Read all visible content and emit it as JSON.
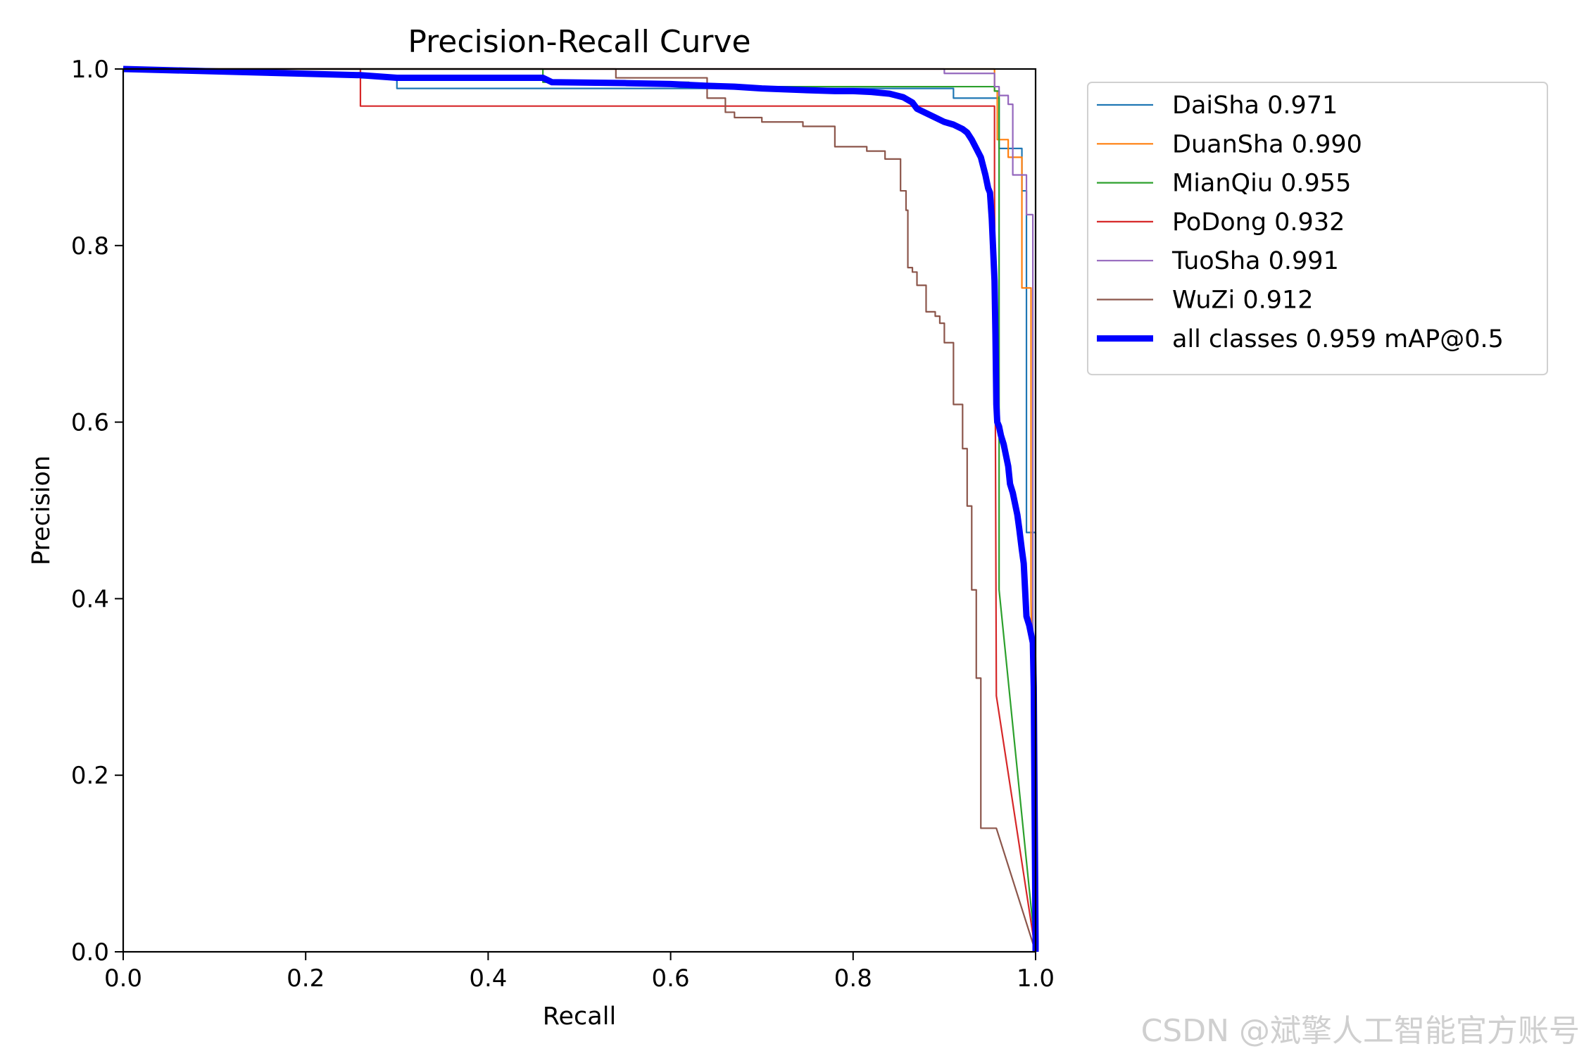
{
  "watermark": "CSDN @斌擎人工智能官方账号",
  "chart_data": {
    "type": "line",
    "title": "Precision-Recall Curve",
    "xlabel": "Recall",
    "ylabel": "Precision",
    "xlim": [
      0.0,
      1.0
    ],
    "ylim": [
      0.0,
      1.0
    ],
    "xticks": [
      "0.0",
      "0.2",
      "0.4",
      "0.6",
      "0.8",
      "1.0"
    ],
    "yticks": [
      "0.0",
      "0.2",
      "0.4",
      "0.6",
      "0.8",
      "1.0"
    ],
    "grid": false,
    "legend_position": "outside-right-top",
    "series": [
      {
        "name": "DaiSha 0.971",
        "color": "#1f77b4",
        "width": "thin",
        "x": [
          0,
          0.26,
          0.26,
          0.3,
          0.3,
          0.91,
          0.91,
          0.96,
          0.96,
          0.985,
          0.985,
          0.99,
          0.99,
          1.0,
          1.0
        ],
        "y": [
          1.0,
          1.0,
          0.99,
          0.99,
          0.978,
          0.978,
          0.967,
          0.967,
          0.91,
          0.91,
          0.862,
          0.862,
          0.475,
          0.475,
          0.0
        ]
      },
      {
        "name": "DuanSha 0.990",
        "color": "#ff7f0e",
        "width": "thin",
        "x": [
          0,
          0.955,
          0.955,
          0.958,
          0.958,
          0.97,
          0.97,
          0.985,
          0.985,
          0.995,
          0.995,
          1.0
        ],
        "y": [
          1.0,
          1.0,
          0.975,
          0.975,
          0.92,
          0.92,
          0.9,
          0.9,
          0.752,
          0.752,
          0.4,
          0.0
        ]
      },
      {
        "name": "MianQiu 0.955",
        "color": "#2ca02c",
        "width": "thin",
        "x": [
          0,
          0.46,
          0.46,
          0.62,
          0.62,
          0.955,
          0.955,
          0.96,
          0.96,
          1.0
        ],
        "y": [
          1.0,
          1.0,
          0.985,
          0.985,
          0.98,
          0.98,
          0.975,
          0.975,
          0.41,
          0.0
        ]
      },
      {
        "name": "PoDong 0.932",
        "color": "#d62728",
        "width": "thin",
        "x": [
          0,
          0.26,
          0.26,
          0.955,
          0.955,
          0.957,
          1.0
        ],
        "y": [
          1.0,
          1.0,
          0.958,
          0.958,
          0.87,
          0.29,
          0.0
        ]
      },
      {
        "name": "TuoSha 0.991",
        "color": "#9467bd",
        "width": "thin",
        "x": [
          0,
          0.9,
          0.9,
          0.955,
          0.955,
          0.96,
          0.96,
          0.97,
          0.97,
          0.975,
          0.975,
          0.99,
          0.99,
          0.997,
          0.997,
          1.0
        ],
        "y": [
          1.0,
          1.0,
          0.995,
          0.995,
          0.98,
          0.98,
          0.97,
          0.97,
          0.96,
          0.96,
          0.88,
          0.88,
          0.835,
          0.835,
          0.1,
          0.0
        ]
      },
      {
        "name": "WuZi 0.912",
        "color": "#8c564b",
        "width": "thin",
        "x": [
          0,
          0.54,
          0.54,
          0.64,
          0.64,
          0.66,
          0.66,
          0.67,
          0.67,
          0.7,
          0.7,
          0.745,
          0.745,
          0.78,
          0.78,
          0.815,
          0.815,
          0.835,
          0.835,
          0.852,
          0.852,
          0.858,
          0.858,
          0.86,
          0.86,
          0.865,
          0.865,
          0.87,
          0.87,
          0.88,
          0.88,
          0.89,
          0.89,
          0.895,
          0.895,
          0.9,
          0.9,
          0.91,
          0.91,
          0.92,
          0.92,
          0.925,
          0.925,
          0.93,
          0.93,
          0.935,
          0.935,
          0.94,
          0.94,
          0.945,
          0.945,
          0.95,
          0.95,
          0.957,
          0.957,
          1.0
        ],
        "y": [
          1.0,
          1.0,
          0.99,
          0.99,
          0.967,
          0.967,
          0.951,
          0.951,
          0.945,
          0.945,
          0.94,
          0.94,
          0.935,
          0.935,
          0.912,
          0.912,
          0.907,
          0.907,
          0.898,
          0.898,
          0.862,
          0.862,
          0.84,
          0.84,
          0.775,
          0.775,
          0.77,
          0.77,
          0.755,
          0.755,
          0.725,
          0.725,
          0.72,
          0.72,
          0.712,
          0.712,
          0.69,
          0.69,
          0.62,
          0.62,
          0.57,
          0.57,
          0.505,
          0.505,
          0.41,
          0.41,
          0.31,
          0.31,
          0.14,
          0.14,
          0.14,
          0.14,
          0.14,
          0.14,
          0.14,
          0.0
        ]
      },
      {
        "name": "all classes 0.959 mAP@0.5",
        "color": "#0000ff",
        "width": "thick",
        "x": [
          0,
          0.26,
          0.3,
          0.46,
          0.47,
          0.55,
          0.6,
          0.64,
          0.67,
          0.7,
          0.75,
          0.78,
          0.8,
          0.82,
          0.84,
          0.855,
          0.865,
          0.87,
          0.88,
          0.89,
          0.9,
          0.91,
          0.92,
          0.925,
          0.93,
          0.935,
          0.94,
          0.945,
          0.948,
          0.95,
          0.952,
          0.955,
          0.956,
          0.957,
          0.958,
          0.96,
          0.962,
          0.965,
          0.968,
          0.97,
          0.972,
          0.975,
          0.978,
          0.98,
          0.982,
          0.985,
          0.987,
          0.99,
          0.993,
          0.995,
          0.997,
          0.998,
          1.0,
          1.0
        ],
        "y": [
          1.0,
          0.993,
          0.99,
          0.99,
          0.985,
          0.984,
          0.983,
          0.981,
          0.98,
          0.978,
          0.976,
          0.975,
          0.975,
          0.974,
          0.972,
          0.968,
          0.962,
          0.955,
          0.95,
          0.945,
          0.94,
          0.937,
          0.932,
          0.928,
          0.92,
          0.91,
          0.9,
          0.88,
          0.865,
          0.86,
          0.83,
          0.76,
          0.7,
          0.62,
          0.6,
          0.595,
          0.585,
          0.575,
          0.56,
          0.55,
          0.53,
          0.52,
          0.505,
          0.495,
          0.48,
          0.455,
          0.44,
          0.38,
          0.37,
          0.36,
          0.35,
          0.3,
          0.01,
          0.0
        ]
      }
    ]
  }
}
